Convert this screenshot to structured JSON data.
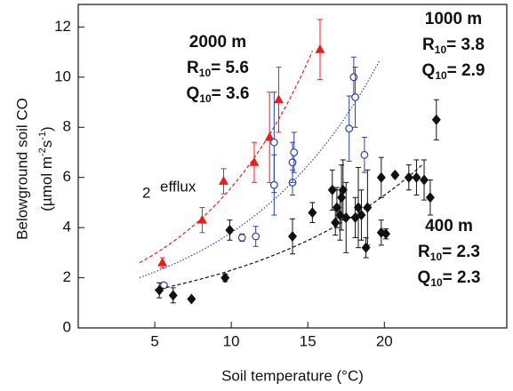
{
  "chart_data": {
    "type": "scatter",
    "x_label": "Soil temperature (°C)",
    "y_label": [
      "Belowground soil CO",
      {
        "parts": [
          "(µmol m",
          "-2",
          "s",
          "-1",
          ")"
        ]
      }
    ],
    "stray_label": {
      "sub": "2",
      "text": "efflux"
    },
    "xlim": [
      0,
      28
    ],
    "xticks": [
      5,
      10,
      15,
      20
    ],
    "ylim": [
      0,
      12.9
    ],
    "yticks": [
      0,
      2,
      4,
      6,
      8,
      10,
      12
    ],
    "series": [
      {
        "name": "2000 m",
        "color": "#e8201c",
        "marker": "triangle",
        "x": [
          5.5,
          8.1,
          9.5,
          11.5,
          12.5,
          13.1,
          15.8
        ],
        "values": [
          2.6,
          4.3,
          5.85,
          6.6,
          7.6,
          9.1,
          11.1
        ],
        "errors": [
          0.2,
          0.5,
          0.5,
          0.8,
          1.8,
          1.3,
          1.2
        ],
        "fit": {
          "R10": 5.6,
          "Q10": 3.6
        },
        "fit_x": [
          4,
          15.3
        ],
        "fit_labels": [
          {
            "main": "R",
            "sub": "10",
            "rest": "= 5.6"
          },
          {
            "main": "Q",
            "sub": "10",
            "rest": "= 3.6"
          }
        ]
      },
      {
        "name": "1000 m",
        "color": "#2a3fa8",
        "marker": "circle",
        "x": [
          5.6,
          10.7,
          11.6,
          12.8,
          12.8,
          14.0,
          14.0,
          14.1,
          17.7,
          18.0,
          18.1,
          18.7
        ],
        "values": [
          1.7,
          3.6,
          3.65,
          7.4,
          5.7,
          5.8,
          6.6,
          7.0,
          7.95,
          10.0,
          9.2,
          6.9
        ],
        "errors": [
          0.1,
          0.15,
          0.4,
          2.0,
          1.2,
          0.5,
          0.8,
          0.8,
          1.3,
          0.8,
          1.2,
          0.7
        ],
        "fit": {
          "R10": 3.8,
          "Q10": 2.9
        },
        "fit_x": [
          4,
          19.7
        ],
        "fit_labels": [
          {
            "main": "R",
            "sub": "10",
            "rest": "= 3.8"
          },
          {
            "main": "Q",
            "sub": "10",
            "rest": "= 2.9"
          }
        ]
      },
      {
        "name": "400 m",
        "color": "#111111",
        "marker": "diamond",
        "x": [
          5.3,
          6.2,
          7.4,
          9.6,
          9.9,
          14.0,
          15.3,
          16.6,
          16.8,
          16.9,
          17.1,
          17.2,
          17.3,
          17.5,
          18.1,
          18.3,
          18.5,
          18.8,
          18.9,
          19.8,
          19.8,
          20.1,
          20.7,
          21.6,
          22.1,
          22.6,
          23.0,
          23.4
        ],
        "values": [
          1.5,
          1.3,
          1.15,
          2.0,
          3.9,
          3.65,
          4.6,
          5.5,
          4.2,
          4.8,
          4.5,
          5.2,
          5.5,
          4.4,
          4.4,
          4.8,
          4.5,
          3.2,
          4.8,
          3.8,
          6.0,
          3.75,
          6.1,
          6.0,
          6.0,
          5.9,
          5.2,
          8.3
        ],
        "errors": [
          0.3,
          0.3,
          0,
          0.15,
          0.4,
          0.7,
          0.4,
          0.8,
          0.5,
          0.8,
          1.0,
          1.3,
          1.2,
          1.4,
          0.8,
          1.6,
          1.0,
          0.4,
          1.5,
          0.5,
          0.8,
          0.2,
          0.1,
          0.5,
          0.7,
          0.8,
          0.7,
          0.8
        ],
        "fit": {
          "R10": 2.3,
          "Q10": 2.3
        },
        "fit_x": [
          5,
          22.5
        ],
        "fit_labels": [
          {
            "main": "R",
            "sub": "10",
            "rest": "= 2.3"
          },
          {
            "main": "Q",
            "sub": "10",
            "rest": "= 2.3"
          }
        ]
      }
    ]
  }
}
